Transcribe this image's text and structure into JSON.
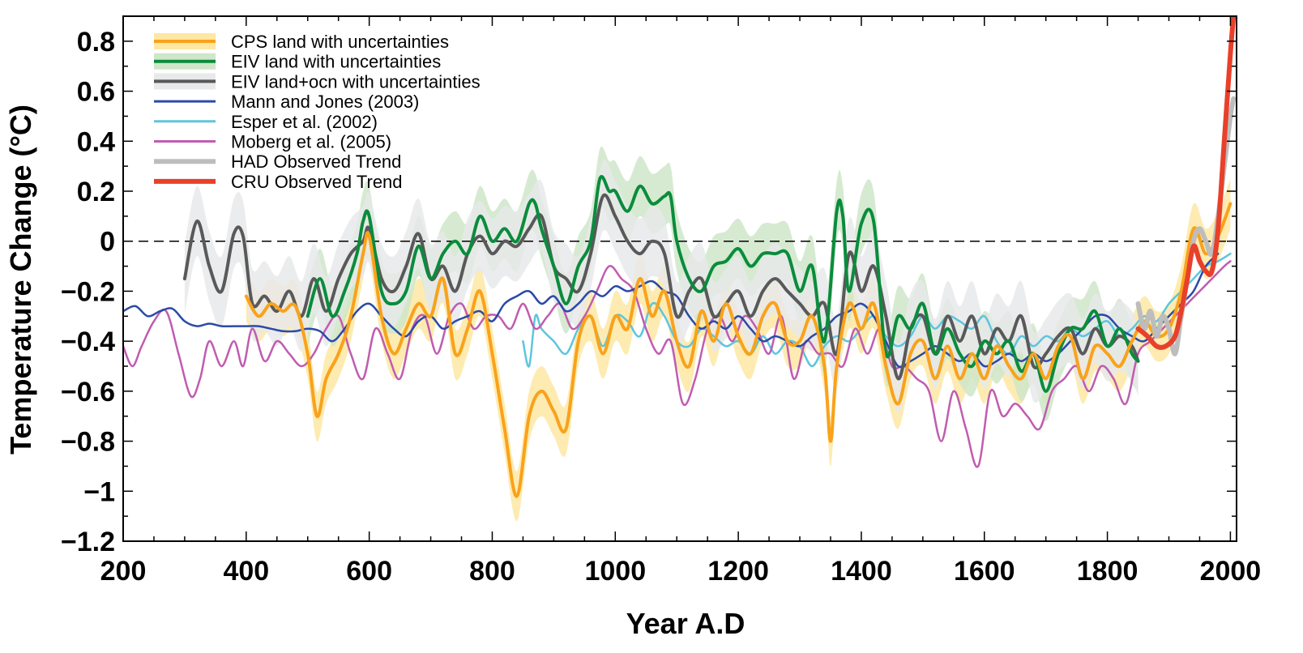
{
  "chart_data": {
    "type": "line",
    "xlabel": "Year A.D",
    "ylabel": "Temperature Change   (°C)",
    "xlim": [
      200,
      2010
    ],
    "ylim": [
      -1.2,
      0.9
    ],
    "x_ticks": [
      200,
      400,
      600,
      800,
      1000,
      1200,
      1400,
      1600,
      1800,
      2000
    ],
    "x_tick_labels": [
      "200",
      "400",
      "600",
      "800",
      "1000",
      "1200",
      "1400",
      "1600",
      "1800",
      "2000"
    ],
    "y_ticks": [
      -1.2,
      -1,
      -0.8,
      -0.6,
      -0.4,
      -0.2,
      0,
      0.2,
      0.4,
      0.6,
      0.8
    ],
    "y_tick_labels": [
      "−1.2",
      "−1",
      "−0.8",
      "−0.6",
      "−0.4",
      "−0.2",
      "0",
      "0.2",
      "0.4",
      "0.6",
      "0.8"
    ],
    "zero_line": {
      "y": 0,
      "style": "dashed"
    },
    "grid": false,
    "legend_position": "top-left",
    "series": [
      {
        "name": "CPS land with uncertainties",
        "color": "#f9a21b",
        "band_color": "#fde7a3",
        "width": 4,
        "x": [
          400,
          420,
          440,
          460,
          480,
          500,
          515,
          530,
          550,
          570,
          590,
          600,
          620,
          640,
          660,
          680,
          700,
          720,
          740,
          760,
          780,
          800,
          820,
          840,
          860,
          880,
          900,
          920,
          940,
          960,
          980,
          1000,
          1020,
          1040,
          1060,
          1080,
          1100,
          1120,
          1140,
          1160,
          1180,
          1200,
          1220,
          1240,
          1260,
          1280,
          1300,
          1320,
          1340,
          1350,
          1360,
          1380,
          1400,
          1420,
          1440,
          1460,
          1480,
          1500,
          1520,
          1540,
          1560,
          1580,
          1600,
          1620,
          1640,
          1660,
          1680,
          1700,
          1720,
          1740,
          1760,
          1780,
          1800,
          1820,
          1840,
          1860,
          1880,
          1900,
          1920,
          1940,
          1960,
          1980,
          2000
        ],
        "y": [
          -0.22,
          -0.3,
          -0.25,
          -0.28,
          -0.26,
          -0.45,
          -0.7,
          -0.55,
          -0.45,
          -0.3,
          -0.05,
          0.02,
          -0.3,
          -0.45,
          -0.35,
          -0.25,
          -0.3,
          -0.15,
          -0.45,
          -0.35,
          -0.2,
          -0.45,
          -0.75,
          -1.02,
          -0.7,
          -0.6,
          -0.68,
          -0.75,
          -0.4,
          -0.3,
          -0.45,
          -0.3,
          -0.35,
          -0.15,
          -0.3,
          -0.2,
          -0.4,
          -0.5,
          -0.28,
          -0.4,
          -0.25,
          -0.38,
          -0.45,
          -0.3,
          -0.25,
          -0.4,
          -0.4,
          -0.3,
          -0.5,
          -0.8,
          -0.5,
          -0.25,
          -0.35,
          -0.25,
          -0.5,
          -0.65,
          -0.45,
          -0.4,
          -0.55,
          -0.42,
          -0.55,
          -0.45,
          -0.55,
          -0.42,
          -0.5,
          -0.55,
          -0.45,
          -0.55,
          -0.42,
          -0.38,
          -0.55,
          -0.42,
          -0.45,
          -0.5,
          -0.4,
          -0.32,
          -0.38,
          -0.35,
          -0.2,
          0.05,
          -0.05,
          0.02,
          0.15
        ],
        "band": 0.1
      },
      {
        "name": "EIV land with uncertainties",
        "color": "#0a8c3c",
        "band_color": "#cfe6c9",
        "width": 4,
        "x": [
          500,
          520,
          540,
          560,
          580,
          590,
          600,
          620,
          640,
          660,
          680,
          700,
          720,
          740,
          760,
          780,
          800,
          820,
          840,
          860,
          870,
          880,
          900,
          920,
          940,
          960,
          975,
          990,
          1000,
          1020,
          1040,
          1060,
          1080,
          1090,
          1100,
          1120,
          1140,
          1160,
          1180,
          1200,
          1220,
          1240,
          1260,
          1280,
          1300,
          1320,
          1340,
          1360,
          1370,
          1380,
          1400,
          1420,
          1440,
          1460,
          1480,
          1500,
          1520,
          1540,
          1560,
          1580,
          1600,
          1620,
          1640,
          1660,
          1680,
          1700,
          1720,
          1740,
          1760,
          1780,
          1800,
          1820,
          1840,
          1850
        ],
        "y": [
          -0.3,
          -0.15,
          -0.3,
          -0.2,
          -0.05,
          0.08,
          0.1,
          -0.2,
          -0.25,
          -0.2,
          -0.02,
          -0.15,
          -0.05,
          0.0,
          -0.05,
          0.1,
          0.0,
          0.05,
          0.0,
          0.15,
          0.15,
          0.05,
          -0.1,
          -0.25,
          -0.1,
          0.0,
          0.25,
          0.2,
          0.2,
          0.12,
          0.22,
          0.15,
          0.18,
          0.18,
          0.0,
          -0.15,
          -0.2,
          -0.1,
          -0.08,
          -0.03,
          -0.1,
          -0.05,
          -0.05,
          -0.05,
          -0.2,
          -0.1,
          -0.4,
          0.12,
          0.1,
          -0.2,
          0.07,
          0.08,
          -0.45,
          -0.3,
          -0.35,
          -0.25,
          -0.45,
          -0.35,
          -0.45,
          -0.5,
          -0.4,
          -0.45,
          -0.4,
          -0.52,
          -0.45,
          -0.6,
          -0.45,
          -0.35,
          -0.35,
          -0.28,
          -0.42,
          -0.35,
          -0.45,
          -0.48
        ],
        "band": 0.12
      },
      {
        "name": "EIV land+ocn with uncertainties",
        "color": "#595959",
        "band_color": "#e8e9ea",
        "width": 4,
        "x": [
          300,
          320,
          340,
          360,
          380,
          395,
          410,
          430,
          450,
          470,
          490,
          510,
          530,
          550,
          570,
          590,
          600,
          620,
          640,
          660,
          680,
          700,
          720,
          740,
          760,
          780,
          800,
          820,
          840,
          860,
          880,
          900,
          920,
          940,
          960,
          980,
          1000,
          1020,
          1040,
          1060,
          1080,
          1100,
          1120,
          1140,
          1160,
          1180,
          1200,
          1220,
          1240,
          1260,
          1280,
          1300,
          1320,
          1340,
          1360,
          1380,
          1400,
          1420,
          1440,
          1460,
          1480,
          1500,
          1520,
          1540,
          1560,
          1580,
          1600,
          1620,
          1640,
          1660,
          1680,
          1700,
          1720,
          1740,
          1760,
          1780,
          1800,
          1820,
          1840,
          1850
        ],
        "y": [
          -0.15,
          0.08,
          -0.1,
          -0.2,
          0.03,
          0.02,
          -0.25,
          -0.22,
          -0.28,
          -0.2,
          -0.3,
          -0.15,
          -0.28,
          -0.15,
          -0.05,
          0.0,
          0.05,
          -0.15,
          -0.2,
          -0.1,
          0.03,
          -0.15,
          -0.1,
          -0.2,
          -0.05,
          0.02,
          -0.05,
          0.0,
          -0.02,
          0.05,
          0.1,
          -0.1,
          -0.15,
          -0.2,
          -0.05,
          0.18,
          0.1,
          0.0,
          -0.05,
          0.0,
          -0.05,
          -0.3,
          -0.2,
          -0.15,
          -0.3,
          -0.25,
          -0.2,
          -0.3,
          -0.2,
          -0.15,
          -0.2,
          -0.25,
          -0.3,
          -0.25,
          -0.45,
          -0.05,
          -0.2,
          -0.1,
          -0.3,
          -0.55,
          -0.35,
          -0.3,
          -0.45,
          -0.3,
          -0.4,
          -0.3,
          -0.45,
          -0.35,
          -0.4,
          -0.3,
          -0.5,
          -0.45,
          -0.38,
          -0.35,
          -0.45,
          -0.35,
          -0.42,
          -0.38,
          -0.42,
          -0.48
        ],
        "band": 0.14
      },
      {
        "name": "Mann and Jones (2003)",
        "color": "#2b4aa6",
        "width": 2.5,
        "x": [
          200,
          220,
          240,
          260,
          280,
          300,
          320,
          340,
          360,
          380,
          400,
          420,
          440,
          460,
          480,
          500,
          520,
          540,
          560,
          580,
          600,
          620,
          640,
          660,
          680,
          700,
          720,
          740,
          760,
          780,
          800,
          820,
          840,
          860,
          880,
          900,
          920,
          940,
          960,
          980,
          1000,
          1020,
          1040,
          1060,
          1080,
          1100,
          1120,
          1140,
          1160,
          1180,
          1200,
          1220,
          1240,
          1260,
          1280,
          1300,
          1320,
          1340,
          1360,
          1380,
          1400,
          1420,
          1440,
          1460,
          1480,
          1500,
          1520,
          1540,
          1560,
          1580,
          1600,
          1620,
          1640,
          1660,
          1680,
          1700,
          1720,
          1740,
          1760,
          1780,
          1800,
          1820,
          1840,
          1860,
          1880,
          1900,
          1920,
          1940,
          1960,
          1980
        ],
        "y": [
          -0.28,
          -0.26,
          -0.3,
          -0.28,
          -0.27,
          -0.32,
          -0.34,
          -0.33,
          -0.34,
          -0.34,
          -0.34,
          -0.34,
          -0.35,
          -0.36,
          -0.36,
          -0.35,
          -0.36,
          -0.4,
          -0.35,
          -0.28,
          -0.25,
          -0.3,
          -0.35,
          -0.38,
          -0.32,
          -0.3,
          -0.35,
          -0.32,
          -0.3,
          -0.28,
          -0.32,
          -0.25,
          -0.22,
          -0.2,
          -0.25,
          -0.22,
          -0.28,
          -0.25,
          -0.2,
          -0.22,
          -0.18,
          -0.2,
          -0.18,
          -0.16,
          -0.2,
          -0.22,
          -0.3,
          -0.35,
          -0.32,
          -0.35,
          -0.3,
          -0.35,
          -0.4,
          -0.38,
          -0.4,
          -0.42,
          -0.38,
          -0.35,
          -0.3,
          -0.28,
          -0.25,
          -0.3,
          -0.4,
          -0.5,
          -0.48,
          -0.45,
          -0.42,
          -0.45,
          -0.48,
          -0.45,
          -0.5,
          -0.48,
          -0.45,
          -0.48,
          -0.45,
          -0.48,
          -0.45,
          -0.4,
          -0.35,
          -0.3,
          -0.3,
          -0.35,
          -0.38,
          -0.4,
          -0.35,
          -0.3,
          -0.25,
          -0.2,
          -0.1,
          -0.05
        ],
        "band": 0
      },
      {
        "name": "Esper et al. (2002)",
        "color": "#5ec5de",
        "width": 2.5,
        "x": [
          850,
          860,
          870,
          880,
          900,
          920,
          940,
          960,
          980,
          1000,
          1020,
          1040,
          1060,
          1080,
          1100,
          1120,
          1140,
          1160,
          1180,
          1200,
          1220,
          1240,
          1260,
          1280,
          1300,
          1320,
          1340,
          1360,
          1380,
          1400,
          1420,
          1440,
          1460,
          1480,
          1500,
          1520,
          1540,
          1560,
          1580,
          1600,
          1620,
          1640,
          1660,
          1680,
          1700,
          1720,
          1740,
          1760,
          1780,
          1800,
          1820,
          1840,
          1860,
          1880,
          1900,
          1920,
          1940,
          1960,
          1980,
          2000
        ],
        "y": [
          -0.4,
          -0.5,
          -0.3,
          -0.35,
          -0.4,
          -0.45,
          -0.35,
          -0.3,
          -0.42,
          -0.3,
          -0.32,
          -0.38,
          -0.25,
          -0.3,
          -0.4,
          -0.42,
          -0.35,
          -0.38,
          -0.42,
          -0.4,
          -0.45,
          -0.38,
          -0.45,
          -0.4,
          -0.42,
          -0.5,
          -0.42,
          -0.38,
          -0.4,
          -0.35,
          -0.3,
          -0.38,
          -0.42,
          -0.38,
          -0.3,
          -0.35,
          -0.3,
          -0.32,
          -0.35,
          -0.3,
          -0.4,
          -0.45,
          -0.38,
          -0.42,
          -0.38,
          -0.4,
          -0.35,
          -0.38,
          -0.35,
          -0.32,
          -0.38,
          -0.35,
          -0.3,
          -0.32,
          -0.25,
          -0.2,
          -0.15,
          -0.1,
          -0.08,
          -0.05
        ],
        "band": 0
      },
      {
        "name": "Moberg et al. (2005)",
        "color": "#c05cb0",
        "width": 2.5,
        "x": [
          200,
          215,
          230,
          250,
          270,
          290,
          310,
          325,
          340,
          360,
          380,
          395,
          410,
          430,
          450,
          470,
          490,
          510,
          530,
          550,
          570,
          590,
          610,
          630,
          650,
          670,
          690,
          710,
          730,
          750,
          770,
          790,
          810,
          830,
          850,
          870,
          890,
          910,
          930,
          950,
          970,
          990,
          1010,
          1030,
          1050,
          1070,
          1090,
          1110,
          1130,
          1150,
          1170,
          1190,
          1210,
          1230,
          1250,
          1270,
          1290,
          1310,
          1330,
          1350,
          1370,
          1390,
          1410,
          1430,
          1450,
          1470,
          1490,
          1510,
          1530,
          1550,
          1570,
          1590,
          1610,
          1630,
          1650,
          1670,
          1690,
          1710,
          1730,
          1750,
          1770,
          1790,
          1810,
          1830,
          1850,
          1870,
          1890,
          1910,
          1930,
          1950,
          1970,
          1990,
          2000
        ],
        "y": [
          -0.42,
          -0.5,
          -0.42,
          -0.32,
          -0.28,
          -0.45,
          -0.62,
          -0.55,
          -0.4,
          -0.5,
          -0.4,
          -0.5,
          -0.35,
          -0.48,
          -0.4,
          -0.45,
          -0.5,
          -0.45,
          -0.35,
          -0.3,
          -0.45,
          -0.55,
          -0.35,
          -0.45,
          -0.55,
          -0.35,
          -0.3,
          -0.45,
          -0.3,
          -0.25,
          -0.35,
          -0.3,
          -0.3,
          -0.35,
          -0.25,
          -0.35,
          -0.3,
          -0.25,
          -0.35,
          -0.3,
          -0.2,
          -0.1,
          -0.15,
          -0.2,
          -0.35,
          -0.45,
          -0.4,
          -0.65,
          -0.55,
          -0.35,
          -0.3,
          -0.4,
          -0.3,
          -0.35,
          -0.45,
          -0.3,
          -0.55,
          -0.4,
          -0.45,
          -0.45,
          -0.5,
          -0.35,
          -0.45,
          -0.35,
          -0.5,
          -0.5,
          -0.55,
          -0.6,
          -0.8,
          -0.6,
          -0.75,
          -0.9,
          -0.6,
          -0.7,
          -0.65,
          -0.7,
          -0.75,
          -0.6,
          -0.55,
          -0.5,
          -0.6,
          -0.5,
          -0.55,
          -0.65,
          -0.45,
          -0.4,
          -0.35,
          -0.3,
          -0.25,
          -0.2,
          -0.15,
          -0.1,
          -0.08
        ],
        "band": 0
      },
      {
        "name": "HAD Observed Trend",
        "color": "#bdbdbd",
        "width": 6,
        "x": [
          1850,
          1860,
          1870,
          1880,
          1890,
          1900,
          1910,
          1920,
          1930,
          1940,
          1950,
          1960,
          1970,
          1980,
          1990,
          2000,
          2005
        ],
        "y": [
          -0.25,
          -0.35,
          -0.28,
          -0.38,
          -0.3,
          -0.35,
          -0.45,
          -0.3,
          -0.15,
          0.0,
          0.05,
          0.0,
          -0.05,
          0.1,
          0.3,
          0.5,
          0.57
        ],
        "band": 0
      },
      {
        "name": "CRU Observed Trend",
        "color": "#e8402a",
        "width": 6,
        "x": [
          1850,
          1865,
          1880,
          1895,
          1910,
          1920,
          1930,
          1940,
          1950,
          1960,
          1970,
          1980,
          1990,
          2000,
          2005
        ],
        "y": [
          -0.35,
          -0.38,
          -0.42,
          -0.42,
          -0.38,
          -0.28,
          -0.15,
          -0.02,
          -0.08,
          -0.12,
          -0.12,
          0.05,
          0.4,
          0.75,
          0.9
        ],
        "band": 0
      }
    ]
  }
}
